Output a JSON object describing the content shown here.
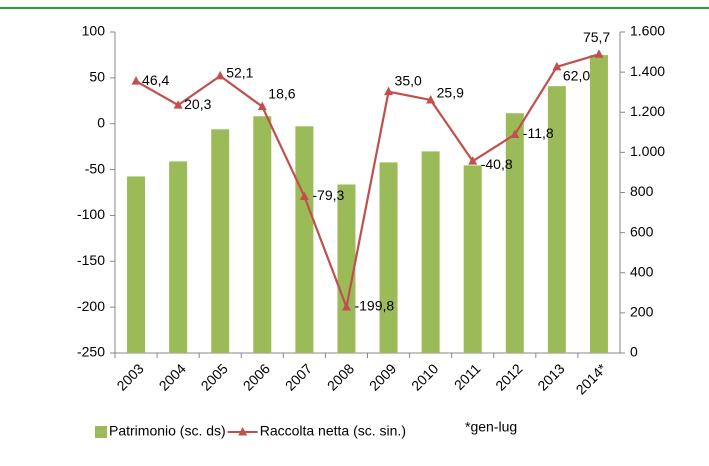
{
  "chart_data": {
    "type": "bar_line",
    "categories": [
      "2003",
      "2004",
      "2005",
      "2006",
      "2007",
      "2008",
      "2009",
      "2010",
      "2011",
      "2012",
      "2013",
      "2014*"
    ],
    "series": [
      {
        "name": "Patrimonio (sc. ds)",
        "type": "bar",
        "axis": "y2",
        "color": "#9bbb59",
        "values": [
          880,
          955,
          1115,
          1180,
          1130,
          840,
          950,
          1005,
          935,
          1195,
          1330,
          1485
        ]
      },
      {
        "name": "Raccolta netta (sc. sin.)",
        "type": "line",
        "color": "#c0504d",
        "values": [
          46.4,
          20.3,
          52.1,
          18.6,
          -79.3,
          -199.8,
          35.0,
          25.9,
          -40.8,
          -11.8,
          62.0,
          75.7
        ],
        "value_labels": [
          "46,4",
          "20,3",
          "52,1",
          "18,6",
          "-79,3",
          "-199,8",
          "35,0",
          "25,9",
          "-40,8",
          "-11,8",
          "62,0",
          "75,7"
        ]
      }
    ],
    "ylim": [
      -250,
      100
    ],
    "yticks": [
      -250,
      -200,
      -150,
      -100,
      -50,
      0,
      50,
      100
    ],
    "y2lim": [
      0,
      1600
    ],
    "y2ticks": [
      0,
      200,
      400,
      600,
      800,
      {
        "value": 1000,
        "label": "1.000"
      },
      {
        "value": 1200,
        "label": "1.200"
      },
      {
        "value": 1400,
        "label": "1.400"
      },
      {
        "value": 1600,
        "label": "1.600"
      }
    ],
    "annotation": "*gen-lug",
    "grid": false
  }
}
